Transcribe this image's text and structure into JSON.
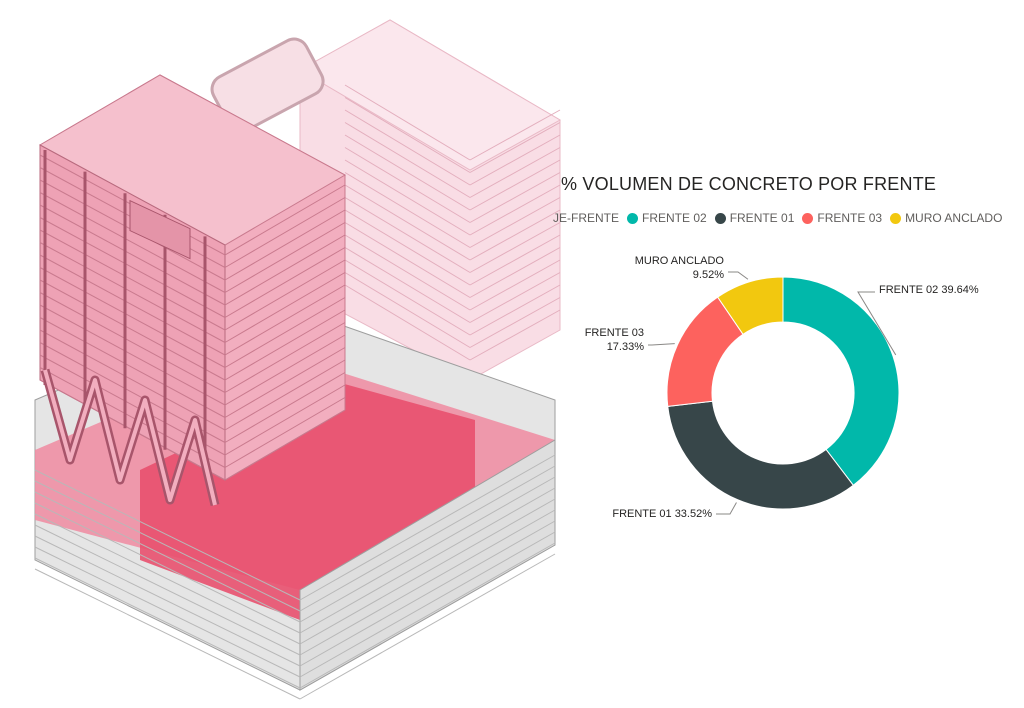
{
  "chart_data": {
    "type": "pie",
    "variant": "donut",
    "title": "% VOLUMEN DE CONCRETO POR FRENTE",
    "legend_title": "JE-FRENTE",
    "legend_position": "top",
    "categories": [
      "FRENTE 02",
      "FRENTE 01",
      "FRENTE 03",
      "MURO ANCLADO"
    ],
    "values": [
      39.64,
      33.52,
      17.33,
      9.52
    ],
    "colors": [
      "#01B8AA",
      "#374649",
      "#FD625E",
      "#F2C80F"
    ],
    "labels": [
      {
        "lines": [
          "FRENTE 02 39.64%"
        ]
      },
      {
        "lines": [
          "FRENTE 01 33.52%"
        ]
      },
      {
        "lines": [
          "FRENTE 03",
          "17.33%"
        ]
      },
      {
        "lines": [
          "MURO ANCLADO",
          "9.52%"
        ]
      }
    ]
  },
  "illustration": {
    "subject": "isometric-building-model",
    "colors": {
      "tower_main": "#f2aebf",
      "tower_light": "#f9dde5",
      "podium": "#e8506e",
      "podium_light": "#f08ba1",
      "basement": "#d9d9d9"
    }
  }
}
